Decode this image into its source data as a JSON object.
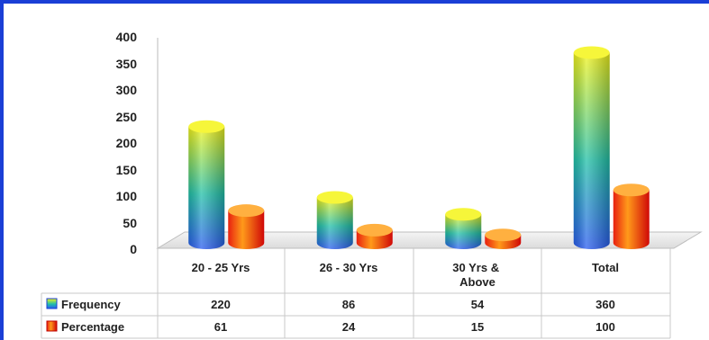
{
  "chart_data": {
    "type": "bar",
    "categories": [
      "20 - 25 Yrs",
      "26 - 30 Yrs",
      "30 Yrs & Above",
      "Total"
    ],
    "series": [
      {
        "name": "Frequency",
        "values": [
          220,
          86,
          54,
          360
        ]
      },
      {
        "name": "Percentage",
        "values": [
          61,
          24,
          15,
          100
        ]
      }
    ],
    "ylim": [
      0,
      400
    ],
    "yticks": [
      "400",
      "350",
      "300",
      "250",
      "200",
      "150",
      "100",
      "50",
      "0"
    ],
    "data_table": {
      "rows": [
        {
          "label": "Frequency",
          "cells": [
            "220",
            "86",
            "54",
            "360"
          ]
        },
        {
          "label": "Percentage",
          "cells": [
            "61",
            "24",
            "15",
            "100"
          ]
        }
      ]
    },
    "title": "",
    "xlabel": "",
    "ylabel": "",
    "grid": false,
    "legend": "bottom-left (in data table)",
    "colors": {
      "frequency_top": "#f2f21a",
      "frequency_mid": "#22c8a0",
      "frequency_bottom": "#2a5cf0",
      "percentage_light": "#ff9a1a",
      "percentage_dark": "#e01010",
      "frame": "#1a3fd6"
    }
  }
}
